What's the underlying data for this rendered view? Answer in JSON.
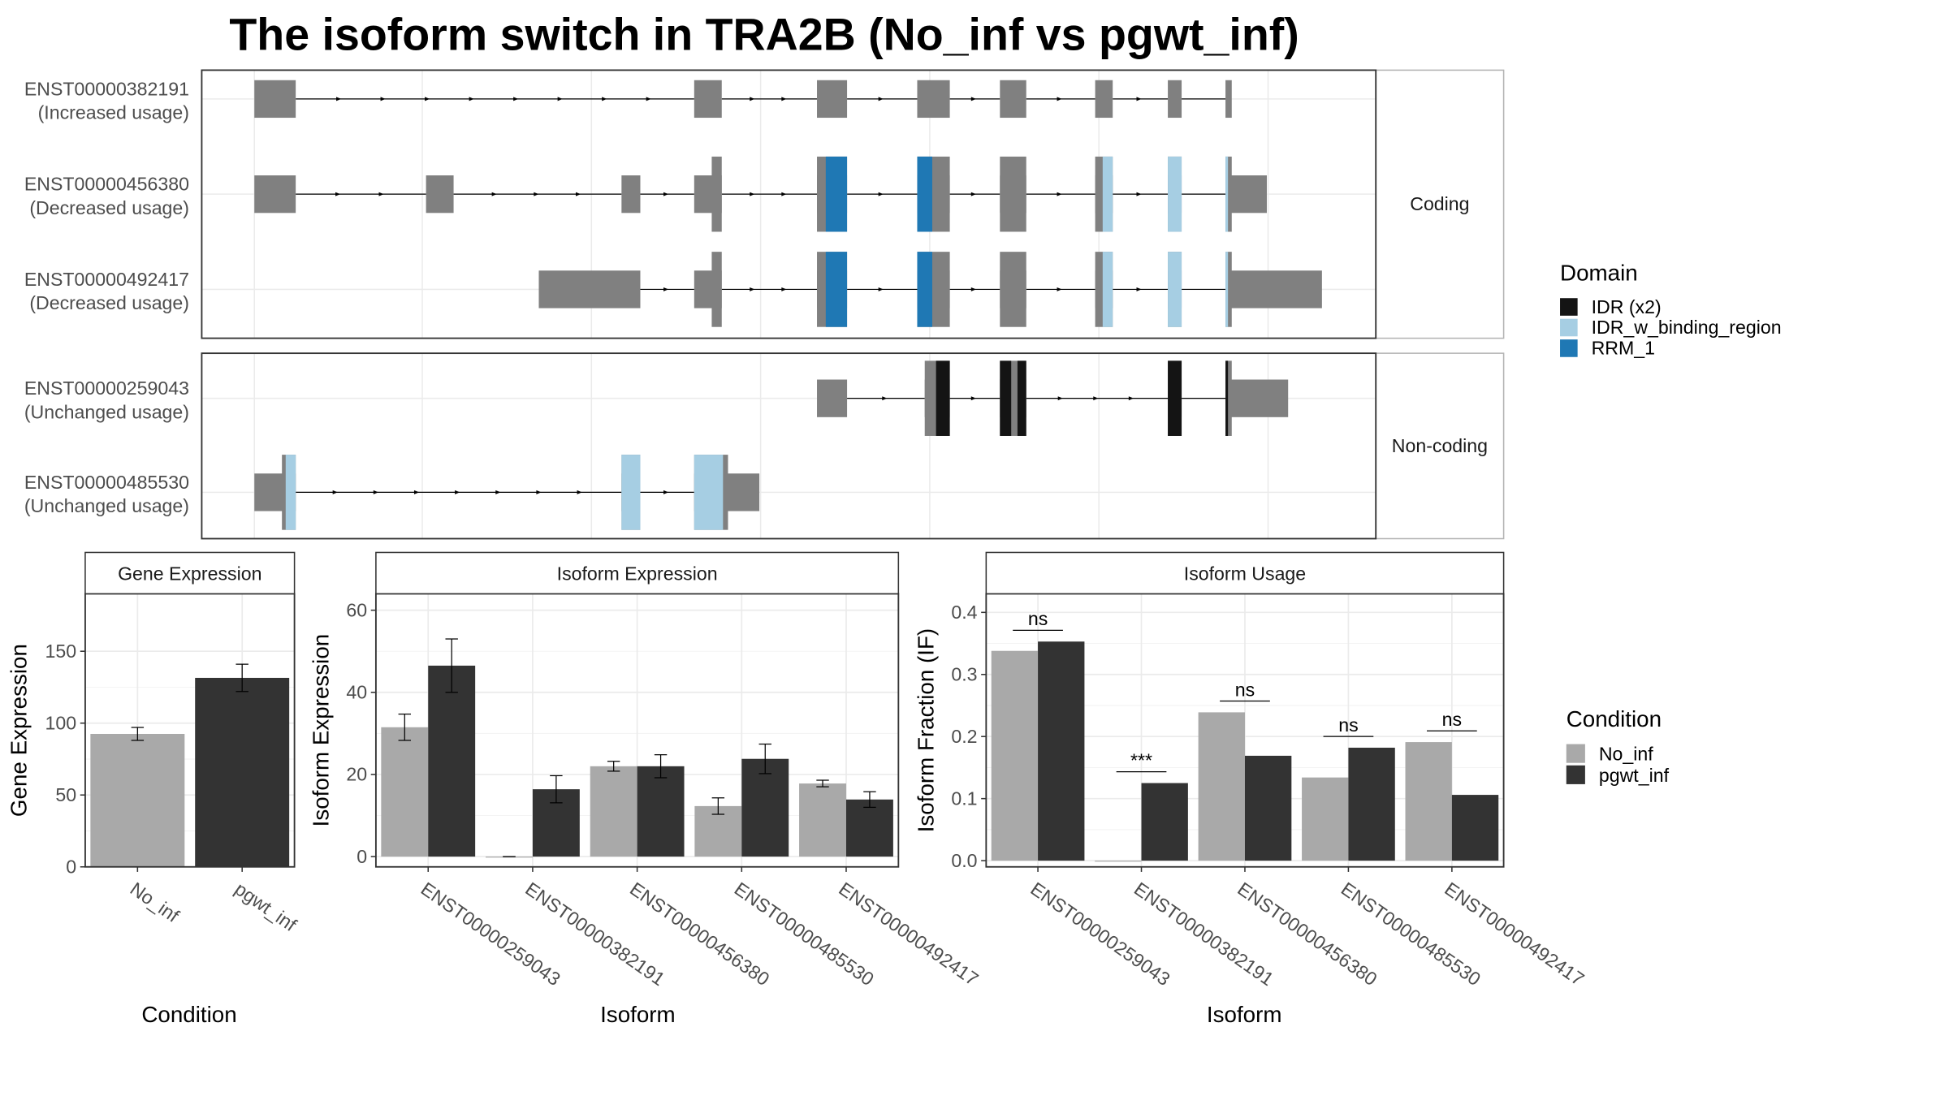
{
  "title": "The isoform switch in TRA2B (No_inf vs pgwt_inf)",
  "colors": {
    "exon": "#808080",
    "No_inf": "#a9a9a9",
    "pgwt_inf": "#333333",
    "IDR (x2)": "#141414",
    "IDR_w_binding_region": "#a6cee3",
    "RRM_1": "#1f78b4"
  },
  "legends": {
    "domain": {
      "title": "Domain",
      "items": [
        {
          "label": "IDR (x2)",
          "color": "#141414"
        },
        {
          "label": "IDR_w_binding_region",
          "color": "#a6cee3"
        },
        {
          "label": "RRM_1",
          "color": "#1f78b4"
        }
      ]
    },
    "condition": {
      "title": "Condition",
      "items": [
        {
          "label": "No_inf",
          "color": "#a9a9a9"
        },
        {
          "label": "pgwt_inf",
          "color": "#333333"
        }
      ]
    }
  },
  "chart_data": [
    {
      "type": "gene-structure",
      "panels": [
        {
          "strip": "Coding",
          "transcripts": [
            {
              "id": "ENST00000382191",
              "usage": "(Increased usage)",
              "exons": [
                [
                  203,
                  236
                ],
                [
                  554,
                  576
                ],
                [
                  652,
                  676
                ],
                [
                  732,
                  758
                ],
                [
                  798,
                  819
                ],
                [
                  874,
                  888
                ],
                [
                  932,
                  943
                ],
                [
                  978,
                  983
                ]
              ],
              "cds": [],
              "domains": []
            },
            {
              "id": "ENST00000456380",
              "usage": "(Decreased usage)",
              "exons": [
                [
                  203,
                  236
                ],
                [
                  340,
                  362
                ],
                [
                  496,
                  511
                ],
                [
                  554,
                  576
                ],
                [
                  652,
                  676
                ],
                [
                  732,
                  758
                ],
                [
                  798,
                  819
                ],
                [
                  874,
                  888
                ],
                [
                  932,
                  943
                ],
                [
                  978,
                  1011
                ]
              ],
              "cds": [
                [
                  568,
                  576
                ],
                [
                  652,
                  676
                ],
                [
                  732,
                  758
                ],
                [
                  798,
                  819
                ],
                [
                  874,
                  888
                ],
                [
                  932,
                  943
                ],
                [
                  978,
                  983
                ]
              ],
              "domains": [
                {
                  "name": "RRM_1",
                  "start": 659,
                  "end": 676
                },
                {
                  "name": "RRM_1",
                  "start": 732,
                  "end": 744
                },
                {
                  "name": "IDR_w_binding_region",
                  "start": 880,
                  "end": 888
                },
                {
                  "name": "IDR_w_binding_region",
                  "start": 932,
                  "end": 943
                },
                {
                  "name": "IDR_w_binding_region",
                  "start": 978,
                  "end": 980
                }
              ]
            },
            {
              "id": "ENST00000492417",
              "usage": "(Decreased usage)",
              "exons": [
                [
                  430,
                  511
                ],
                [
                  554,
                  576
                ],
                [
                  652,
                  676
                ],
                [
                  732,
                  758
                ],
                [
                  798,
                  819
                ],
                [
                  874,
                  888
                ],
                [
                  932,
                  943
                ],
                [
                  978,
                  1055
                ]
              ],
              "cds": [
                [
                  568,
                  576
                ],
                [
                  652,
                  676
                ],
                [
                  732,
                  758
                ],
                [
                  798,
                  819
                ],
                [
                  874,
                  888
                ],
                [
                  932,
                  943
                ],
                [
                  978,
                  983
                ]
              ],
              "domains": [
                {
                  "name": "RRM_1",
                  "start": 659,
                  "end": 676
                },
                {
                  "name": "RRM_1",
                  "start": 732,
                  "end": 744
                },
                {
                  "name": "IDR_w_binding_region",
                  "start": 880,
                  "end": 888
                },
                {
                  "name": "IDR_w_binding_region",
                  "start": 932,
                  "end": 943
                },
                {
                  "name": "IDR_w_binding_region",
                  "start": 978,
                  "end": 980
                }
              ]
            }
          ]
        },
        {
          "strip": "Non-coding",
          "transcripts": [
            {
              "id": "ENST00000259043",
              "usage": "(Unchanged usage)",
              "exons": [
                [
                  652,
                  676
                ],
                [
                  738,
                  758
                ],
                [
                  798,
                  819
                ],
                [
                  932,
                  943
                ],
                [
                  978,
                  1028
                ]
              ],
              "cds": [
                [
                  738,
                  758
                ],
                [
                  798,
                  819
                ],
                [
                  932,
                  943
                ],
                [
                  978,
                  983
                ]
              ],
              "domains": [
                {
                  "name": "IDR (x2)",
                  "start": 747,
                  "end": 758
                },
                {
                  "name": "IDR (x2)",
                  "start": 798,
                  "end": 807
                },
                {
                  "name": "IDR (x2)",
                  "start": 812,
                  "end": 819
                },
                {
                  "name": "IDR (x2)",
                  "start": 932,
                  "end": 943
                },
                {
                  "name": "IDR (x2)",
                  "start": 978,
                  "end": 980
                }
              ]
            },
            {
              "id": "ENST00000485530",
              "usage": "(Unchanged usage)",
              "exons": [
                [
                  203,
                  236
                ],
                [
                  496,
                  511
                ],
                [
                  554,
                  606
                ]
              ],
              "cds": [
                [
                  225,
                  236
                ],
                [
                  496,
                  511
                ],
                [
                  554,
                  581
                ]
              ],
              "domains": [
                {
                  "name": "IDR_w_binding_region",
                  "start": 228,
                  "end": 236
                },
                {
                  "name": "IDR_w_binding_region",
                  "start": 496,
                  "end": 511
                },
                {
                  "name": "IDR_w_binding_region",
                  "start": 554,
                  "end": 577
                }
              ]
            }
          ]
        }
      ]
    },
    {
      "type": "bar",
      "panel": "Gene Expression",
      "ylabel": "Gene Expression",
      "xlabel": "Condition",
      "ylim": [
        0,
        190
      ],
      "yticks": [
        0,
        50,
        100,
        150
      ],
      "categories": [
        "No_inf",
        "pgwt_inf"
      ],
      "series": [
        {
          "name": "No_inf",
          "values": [
            92.5,
            null
          ],
          "errors": [
            4.5,
            null
          ]
        },
        {
          "name": "pgwt_inf",
          "values": [
            null,
            131.5
          ],
          "errors": [
            null,
            9.5
          ]
        }
      ]
    },
    {
      "type": "bar",
      "panel": "Isoform Expression",
      "ylabel": "Isoform Expression",
      "xlabel": "Isoform",
      "ylim": [
        -2.5,
        64
      ],
      "yticks": [
        0,
        20,
        40,
        60
      ],
      "categories": [
        "ENST00000259043",
        "ENST00000382191",
        "ENST00000456380",
        "ENST00000485530",
        "ENST00000492417"
      ],
      "series": [
        {
          "name": "No_inf",
          "values": [
            31.5,
            0,
            22,
            12.3,
            17.8
          ],
          "errors": [
            3.2,
            0,
            1.2,
            2,
            0.8
          ]
        },
        {
          "name": "pgwt_inf",
          "values": [
            46.5,
            16.4,
            22,
            23.8,
            13.9
          ],
          "errors": [
            6.5,
            3.3,
            2.8,
            3.6,
            1.9
          ]
        }
      ]
    },
    {
      "type": "bar",
      "panel": "Isoform Usage",
      "ylabel": "Isoform Fraction (IF)",
      "xlabel": "Isoform",
      "ylim": [
        -0.01,
        0.43
      ],
      "yticks": [
        0.0,
        0.1,
        0.2,
        0.3,
        0.4
      ],
      "ytick_labels": [
        "0.0",
        "0.1",
        "0.2",
        "0.3",
        "0.4"
      ],
      "categories": [
        "ENST00000259043",
        "ENST00000382191",
        "ENST00000456380",
        "ENST00000485530",
        "ENST00000492417"
      ],
      "series": [
        {
          "name": "No_inf",
          "values": [
            0.338,
            0,
            0.239,
            0.134,
            0.191
          ]
        },
        {
          "name": "pgwt_inf",
          "values": [
            0.353,
            0.125,
            0.169,
            0.182,
            0.106
          ]
        }
      ],
      "significance": [
        "ns",
        "***",
        "ns",
        "ns",
        "ns"
      ]
    }
  ]
}
